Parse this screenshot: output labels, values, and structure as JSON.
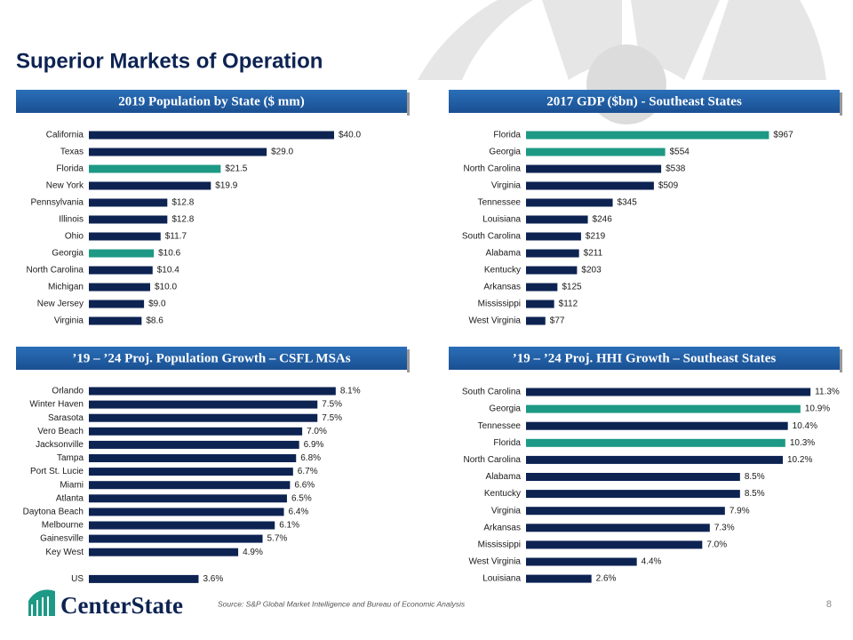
{
  "title": "Superior Markets of Operation",
  "source": "Source:  S&P Global Market Intelligence and Bureau of Economic Analysis",
  "page_number": "8",
  "logo": "CenterState",
  "chart_data": [
    {
      "type": "bar",
      "title": "2019 Population by State ($ mm)",
      "categories": [
        "California",
        "Texas",
        "Florida",
        "New York",
        "Pennsylvania",
        "Illinois",
        "Ohio",
        "Georgia",
        "North Carolina",
        "Michigan",
        "New Jersey",
        "Virginia"
      ],
      "values": [
        40.0,
        29.0,
        21.5,
        19.9,
        12.8,
        12.8,
        11.7,
        10.6,
        10.4,
        10.0,
        9.0,
        8.6
      ],
      "value_labels": [
        "$40.0",
        "$29.0",
        "$21.5",
        "$19.9",
        "$12.8",
        "$12.8",
        "$11.7",
        "$10.6",
        "$10.4",
        "$10.0",
        "$9.0",
        "$8.6"
      ],
      "colors": [
        "#0d2352",
        "#0d2352",
        "#1d9985",
        "#0d2352",
        "#0d2352",
        "#0d2352",
        "#0d2352",
        "#1d9985",
        "#0d2352",
        "#0d2352",
        "#0d2352",
        "#0d2352"
      ],
      "xlim": [
        0,
        50
      ]
    },
    {
      "type": "bar",
      "title": "2017 GDP ($bn) - Southeast States",
      "categories": [
        "Florida",
        "Georgia",
        "North Carolina",
        "Virginia",
        "Tennessee",
        "Louisiana",
        "South Carolina",
        "Alabama",
        "Kentucky",
        "Arkansas",
        "Mississippi",
        "West Virginia"
      ],
      "values": [
        967,
        554,
        538,
        509,
        345,
        246,
        219,
        211,
        203,
        125,
        112,
        77
      ],
      "value_labels": [
        "$967",
        "$554",
        "$538",
        "$509",
        "$345",
        "$246",
        "$219",
        "$211",
        "$203",
        "$125",
        "$112",
        "$77"
      ],
      "colors": [
        "#1d9985",
        "#1d9985",
        "#0d2352",
        "#0d2352",
        "#0d2352",
        "#0d2352",
        "#0d2352",
        "#0d2352",
        "#0d2352",
        "#0d2352",
        "#0d2352",
        "#0d2352"
      ],
      "xlim": [
        0,
        1100
      ]
    },
    {
      "type": "bar",
      "title": "’19 – ’24 Proj. Population Growth – CSFL MSAs",
      "categories": [
        "Orlando",
        "Winter Haven",
        "Sarasota",
        "Vero Beach",
        "Jacksonville",
        "Tampa",
        "Port St. Lucie",
        "Miami",
        "Atlanta",
        "Daytona Beach",
        "Melbourne",
        "Gainesville",
        "Key West",
        null,
        "US"
      ],
      "values": [
        8.1,
        7.5,
        7.5,
        7.0,
        6.9,
        6.8,
        6.7,
        6.6,
        6.5,
        6.4,
        6.1,
        5.7,
        4.9,
        null,
        3.6
      ],
      "value_labels": [
        "8.1%",
        "7.5%",
        "7.5%",
        "7.0%",
        "6.9%",
        "6.8%",
        "6.7%",
        "6.6%",
        "6.5%",
        "6.4%",
        "6.1%",
        "5.7%",
        "4.9%",
        null,
        "3.6%"
      ],
      "color": "#0d2352",
      "xlim": [
        0,
        10
      ]
    },
    {
      "type": "bar",
      "title": "’19 – ’24 Proj. HHI Growth – Southeast States",
      "categories": [
        "South Carolina",
        "Georgia",
        "Tennessee",
        "Florida",
        "North Carolina",
        "Alabama",
        "Kentucky",
        "Virginia",
        "Arkansas",
        "Mississippi",
        "West Virginia",
        "Louisiana"
      ],
      "values": [
        11.3,
        10.9,
        10.4,
        10.3,
        10.2,
        8.5,
        8.5,
        7.9,
        7.3,
        7.0,
        4.4,
        2.6
      ],
      "value_labels": [
        "11.3%",
        "10.9%",
        "10.4%",
        "10.3%",
        "10.2%",
        "8.5%",
        "8.5%",
        "7.9%",
        "7.3%",
        "7.0%",
        "4.4%",
        "2.6%"
      ],
      "colors": [
        "#0d2352",
        "#1d9985",
        "#0d2352",
        "#1d9985",
        "#0d2352",
        "#0d2352",
        "#0d2352",
        "#0d2352",
        "#0d2352",
        "#0d2352",
        "#0d2352",
        "#0d2352"
      ],
      "xlim": [
        0,
        12
      ]
    }
  ]
}
